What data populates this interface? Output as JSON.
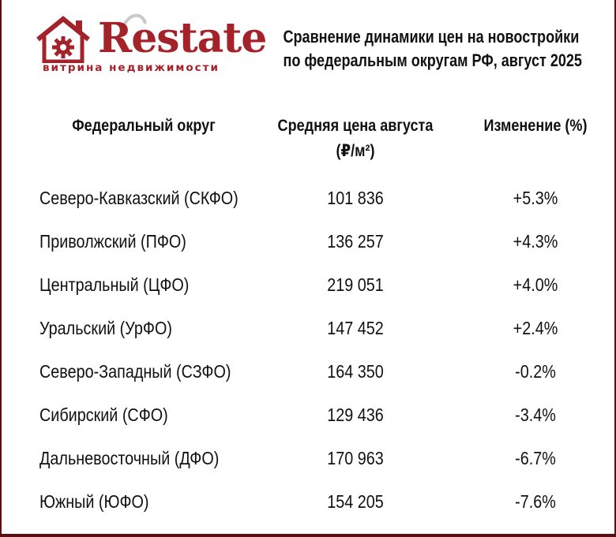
{
  "brand": {
    "name": "Restate",
    "tagline": "витрина недвижимости",
    "color": "#a4232a"
  },
  "title": {
    "line1": "Сравнение динамики цен на новостройки",
    "line2": "по федеральным округам РФ, август 2025"
  },
  "chart_data": {
    "type": "table",
    "title": "Сравнение динамики цен на новостройки по федеральным округам РФ, август 2025",
    "columns": {
      "district": "Федеральный округ",
      "price_line1": "Средняя цена августа",
      "price_line2": "(₽/м²)",
      "change": "Изменение (%)"
    },
    "rows": [
      {
        "district": "Северо-Кавказский (СКФО)",
        "price": "101 836",
        "change": "+5.3%"
      },
      {
        "district": "Приволжский (ПФО)",
        "price": "136 257",
        "change": "+4.3%"
      },
      {
        "district": "Центральный (ЦФО)",
        "price": "219 051",
        "change": "+4.0%"
      },
      {
        "district": "Уральский (УрФО)",
        "price": "147 452",
        "change": "+2.4%"
      },
      {
        "district": "Северо-Западный (СЗФО)",
        "price": "164 350",
        "change": "-0.2%"
      },
      {
        "district": "Сибирский (СФО)",
        "price": "129 436",
        "change": "-3.4%"
      },
      {
        "district": "Дальневосточный (ДФО)",
        "price": "170 963",
        "change": "-6.7%"
      },
      {
        "district": "Южный (ЮФО)",
        "price": "154 205",
        "change": "-7.6%"
      }
    ]
  }
}
